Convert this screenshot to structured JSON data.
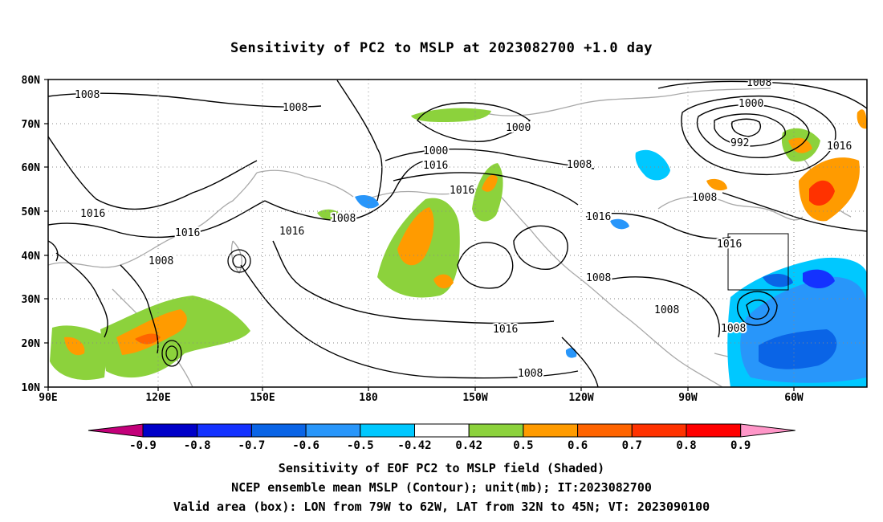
{
  "title": "Sensitivity of PC2 to MSLP at 2023082700 +1.0 day",
  "map": {
    "lat_labels": [
      "80N",
      "70N",
      "60N",
      "50N",
      "40N",
      "30N",
      "20N",
      "10N"
    ],
    "lon_labels": [
      "90E",
      "120E",
      "150E",
      "180",
      "150W",
      "120W",
      "90W",
      "60W"
    ],
    "lat_range": [
      10,
      80
    ],
    "lon_range": [
      90,
      312
    ],
    "contour_unit": "mb",
    "contour_labels": [
      "1008",
      "1008",
      "1000",
      "1008",
      "1016",
      "1016",
      "1008",
      "1000",
      "992",
      "1016",
      "1008",
      "1016",
      "1016",
      "1016",
      "1016",
      "1008",
      "1008",
      "1016",
      "1008",
      "1008",
      "1008"
    ],
    "valid_box": {
      "lon_west": "79W",
      "lon_east": "62W",
      "lat_south": "32N",
      "lat_north": "45N"
    }
  },
  "colorbar": {
    "labels": [
      "-0.9",
      "-0.8",
      "-0.7",
      "-0.6",
      "-0.5",
      "-0.42",
      "0.42",
      "0.5",
      "0.6",
      "0.7",
      "0.8",
      "0.9"
    ],
    "colors": [
      "#c3007a",
      "#0000c8",
      "#1432ff",
      "#0a64e6",
      "#2896fa",
      "#00c8ff",
      "#ffffff",
      "#8cd23c",
      "#ff9b00",
      "#ff6400",
      "#ff3200",
      "#ff0000",
      "#ff96c8"
    ]
  },
  "captions": [
    "Sensitivity of EOF PC2 to MSLP field (Shaded)",
    "NCEP ensemble mean MSLP (Contour); unit(mb); IT:2023082700",
    "Valid area (box): LON from 79W to 62W, LAT from 32N to 45N; VT: 2023090100"
  ]
}
